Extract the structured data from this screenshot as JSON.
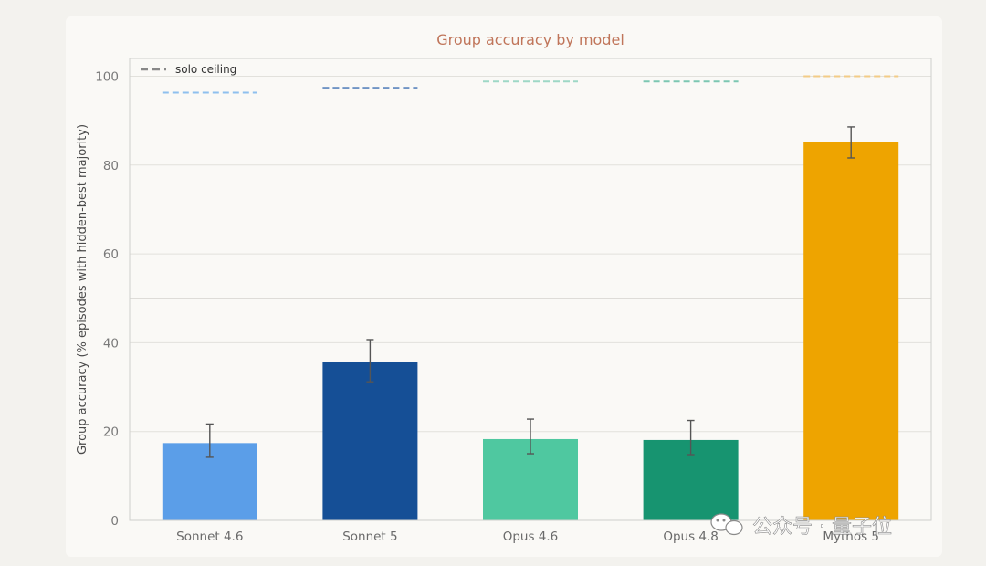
{
  "chart_data": {
    "type": "bar",
    "title": "Group accuracy by model",
    "xlabel": "",
    "ylabel": "Group accuracy (% episodes with hidden-best majority)",
    "categories": [
      "Sonnet 4.6",
      "Sonnet 5",
      "Opus 4.6",
      "Opus 4.8",
      "Mythos 5"
    ],
    "values": [
      17.4,
      35.6,
      18.3,
      18.1,
      85.1
    ],
    "error_low": [
      14.2,
      31.2,
      15.0,
      14.8,
      81.6
    ],
    "error_high": [
      21.7,
      40.7,
      22.8,
      22.5,
      88.6
    ],
    "solo_ceiling": [
      96.3,
      97.4,
      98.8,
      98.8,
      100.0
    ],
    "colors": [
      "#5b9ee8",
      "#154f96",
      "#4fc8a0",
      "#179470",
      "#eea400"
    ],
    "ceiling_colors": [
      "#8ec0ee",
      "#6f93c4",
      "#9ed8c6",
      "#7cc7b2",
      "#f3cc86"
    ],
    "ylim": [
      0,
      104
    ],
    "yticks": [
      0,
      20,
      40,
      60,
      80,
      100
    ],
    "grid": true,
    "legend": {
      "position": "top-left",
      "entries": [
        "solo ceiling"
      ]
    }
  },
  "watermark": {
    "text": "公众号 · 量子位",
    "icon": "wechat-icon"
  }
}
